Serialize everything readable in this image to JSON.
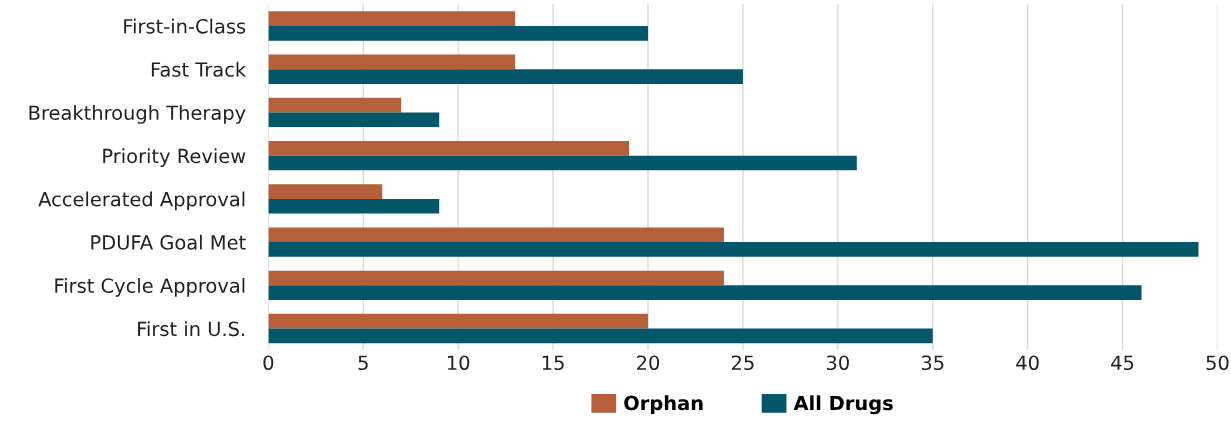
{
  "chart_data": {
    "type": "bar",
    "orientation": "horizontal",
    "categories": [
      "First-in-Class",
      "Fast Track",
      "Breakthrough Therapy",
      "Priority Review",
      "Accelerated Approval",
      "PDUFA Goal Met",
      "First Cycle Approval",
      "First in U.S."
    ],
    "series": [
      {
        "name": "Orphan",
        "color": "#b5603a",
        "values": [
          13,
          13,
          7,
          19,
          6,
          24,
          24,
          20
        ]
      },
      {
        "name": "All Drugs",
        "color": "#04566a",
        "values": [
          20,
          25,
          9,
          31,
          9,
          49,
          46,
          35
        ]
      }
    ],
    "xlim": [
      0,
      50
    ],
    "xticks": [
      0,
      5,
      10,
      15,
      20,
      25,
      30,
      35,
      40,
      45,
      50
    ],
    "grid": "x",
    "legend": "bottom"
  }
}
